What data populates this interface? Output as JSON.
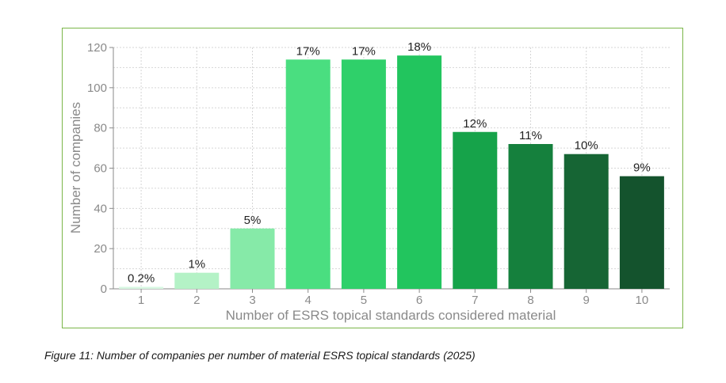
{
  "caption": "Figure 11: Number of companies per number of material ESRS topical standards (2025)",
  "chart_data": {
    "type": "bar",
    "categories": [
      "1",
      "2",
      "3",
      "4",
      "5",
      "6",
      "7",
      "8",
      "9",
      "10"
    ],
    "values": [
      1,
      8,
      30,
      114,
      114,
      116,
      78,
      72,
      67,
      56
    ],
    "data_labels": [
      "0.2%",
      "1%",
      "5%",
      "17%",
      "17%",
      "18%",
      "12%",
      "11%",
      "10%",
      "9%"
    ],
    "bar_colors": [
      "#d8f7e2",
      "#b4f2c6",
      "#86eaa8",
      "#4ade80",
      "#2fd06a",
      "#22c55e",
      "#16a34a",
      "#15803d",
      "#166534",
      "#14532d"
    ],
    "xlabel": "Number of ESRS topical standards considered material",
    "ylabel": "Number of companies",
    "ylim": [
      0,
      120
    ],
    "yticks": [
      0,
      20,
      40,
      60,
      80,
      100,
      120
    ],
    "grid": true,
    "frame_color": "#7ab648"
  }
}
